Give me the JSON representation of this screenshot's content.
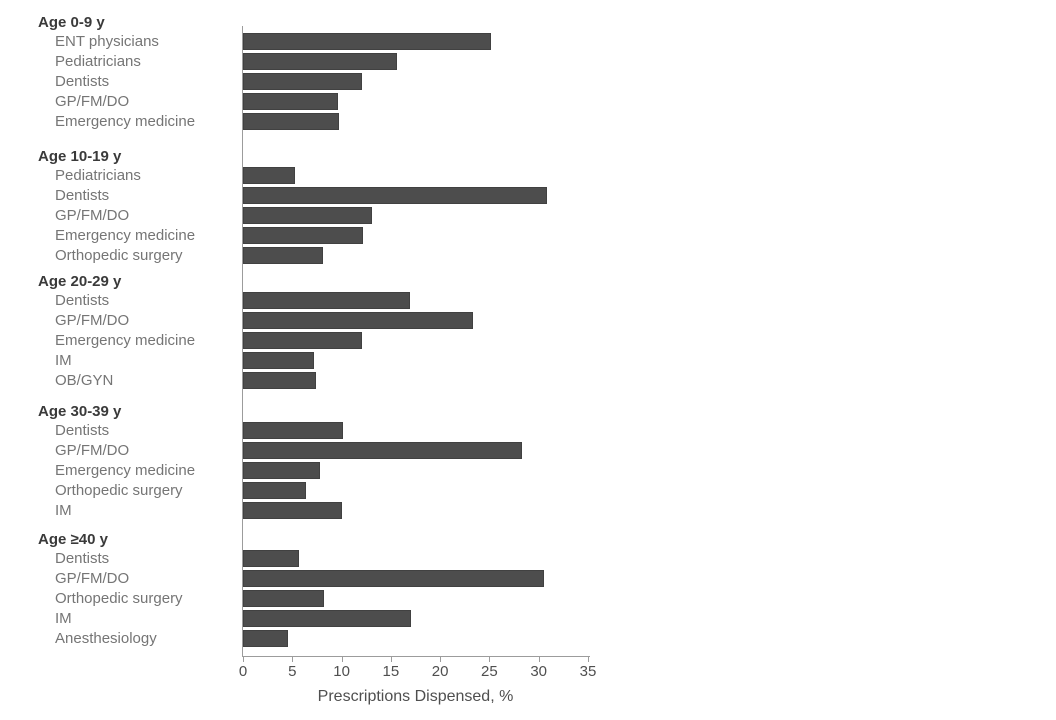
{
  "chart_data": {
    "type": "bar",
    "orientation": "horizontal",
    "title": "",
    "xlabel": "Prescriptions Dispensed, %",
    "ylabel": "",
    "xlim": [
      0,
      35
    ],
    "x_ticks": [
      0,
      5,
      10,
      15,
      20,
      25,
      30,
      35
    ],
    "grid": false,
    "legend": "none",
    "bar_color": "#4d4d4d",
    "groups": [
      {
        "label": "Age 0-9 y",
        "items": [
          {
            "label": "ENT physicians",
            "value": 25.2
          },
          {
            "label": "Pediatricians",
            "value": 15.6
          },
          {
            "label": "Dentists",
            "value": 12.1
          },
          {
            "label": "GP/FM/DO",
            "value": 9.6
          },
          {
            "label": "Emergency medicine",
            "value": 9.7
          }
        ]
      },
      {
        "label": "Age 10-19 y",
        "items": [
          {
            "label": "Pediatricians",
            "value": 5.3
          },
          {
            "label": "Dentists",
            "value": 30.8
          },
          {
            "label": "GP/FM/DO",
            "value": 13.1
          },
          {
            "label": "Emergency medicine",
            "value": 12.2
          },
          {
            "label": "Orthopedic surgery",
            "value": 8.1
          }
        ]
      },
      {
        "label": "Age 20-29 y",
        "items": [
          {
            "label": "Dentists",
            "value": 16.9
          },
          {
            "label": "GP/FM/DO",
            "value": 23.3
          },
          {
            "label": "Emergency medicine",
            "value": 12.1
          },
          {
            "label": "IM",
            "value": 7.2
          },
          {
            "label": "OB/GYN",
            "value": 7.4
          }
        ]
      },
      {
        "label": "Age 30-39 y",
        "items": [
          {
            "label": "Dentists",
            "value": 10.1
          },
          {
            "label": "GP/FM/DO",
            "value": 28.3
          },
          {
            "label": "Emergency medicine",
            "value": 7.8
          },
          {
            "label": "Orthopedic surgery",
            "value": 6.4
          },
          {
            "label": "IM",
            "value": 10.0
          }
        ]
      },
      {
        "label": "Age ≥40 y",
        "items": [
          {
            "label": "Dentists",
            "value": 5.7
          },
          {
            "label": "GP/FM/DO",
            "value": 30.5
          },
          {
            "label": "Orthopedic surgery",
            "value": 8.2
          },
          {
            "label": "IM",
            "value": 17.0
          },
          {
            "label": "Anesthesiology",
            "value": 4.6
          }
        ]
      }
    ]
  },
  "colors": {
    "bar": "#4d4d4d",
    "bar_border": "#414141",
    "axis_line": "#9c9c9c",
    "header_text": "#3a3a3a",
    "label_text": "#757575",
    "tick_text": "#4f4f4f",
    "background": "#ffffff"
  }
}
